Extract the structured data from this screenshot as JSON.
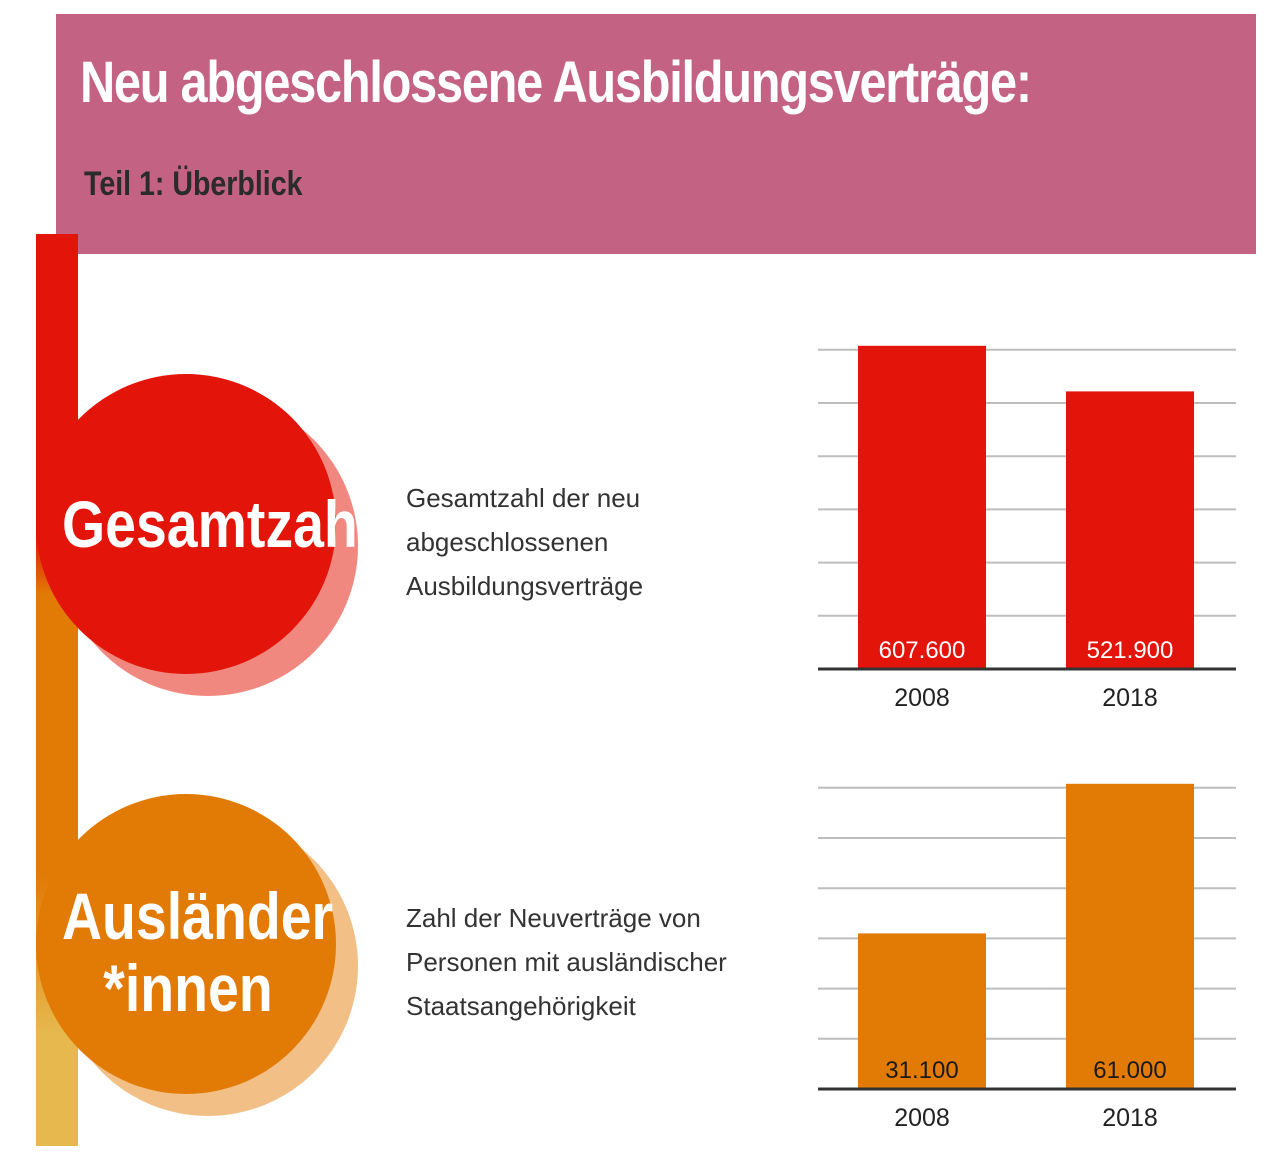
{
  "header": {
    "title": "Neu abgeschlossene Ausbildungsverträge:",
    "subtitle": "Teil 1: Überblick"
  },
  "colors": {
    "header_bg": "#c46284",
    "red": "#e3140a",
    "red_light": "#f08880",
    "orange": "#e27a06",
    "orange_light": "#f2bf86",
    "yellow": "#e6b84e"
  },
  "sections": [
    {
      "label_lines": [
        "Gesamtzahl"
      ],
      "description_lines": [
        "Gesamtzahl der neu",
        "abgeschlossenen",
        "Ausbildungsverträge"
      ]
    },
    {
      "label_lines": [
        "Ausländer",
        "*innen"
      ],
      "description_lines": [
        "Zahl der Neuverträge von",
        "Personen mit ausländischer",
        "Staatsangehörigkeit"
      ]
    }
  ],
  "chart_data": [
    {
      "type": "bar",
      "categories": [
        "2008",
        "2018"
      ],
      "values": [
        607600,
        521900
      ],
      "value_labels": [
        "607.600",
        "521.900"
      ],
      "ylim": [
        0,
        607600
      ],
      "grid_lines": 6,
      "grid": true,
      "color": "#e3140a",
      "label_color": "#ffffff",
      "title": "",
      "xlabel": "",
      "ylabel": ""
    },
    {
      "type": "bar",
      "categories": [
        "2008",
        "2018"
      ],
      "values": [
        31100,
        61000
      ],
      "value_labels": [
        "31.100",
        "61.000"
      ],
      "ylim": [
        0,
        61000
      ],
      "grid_lines": 6,
      "grid": true,
      "color": "#e27a06",
      "label_color": "#1a1a1a",
      "title": "",
      "xlabel": "",
      "ylabel": ""
    }
  ]
}
